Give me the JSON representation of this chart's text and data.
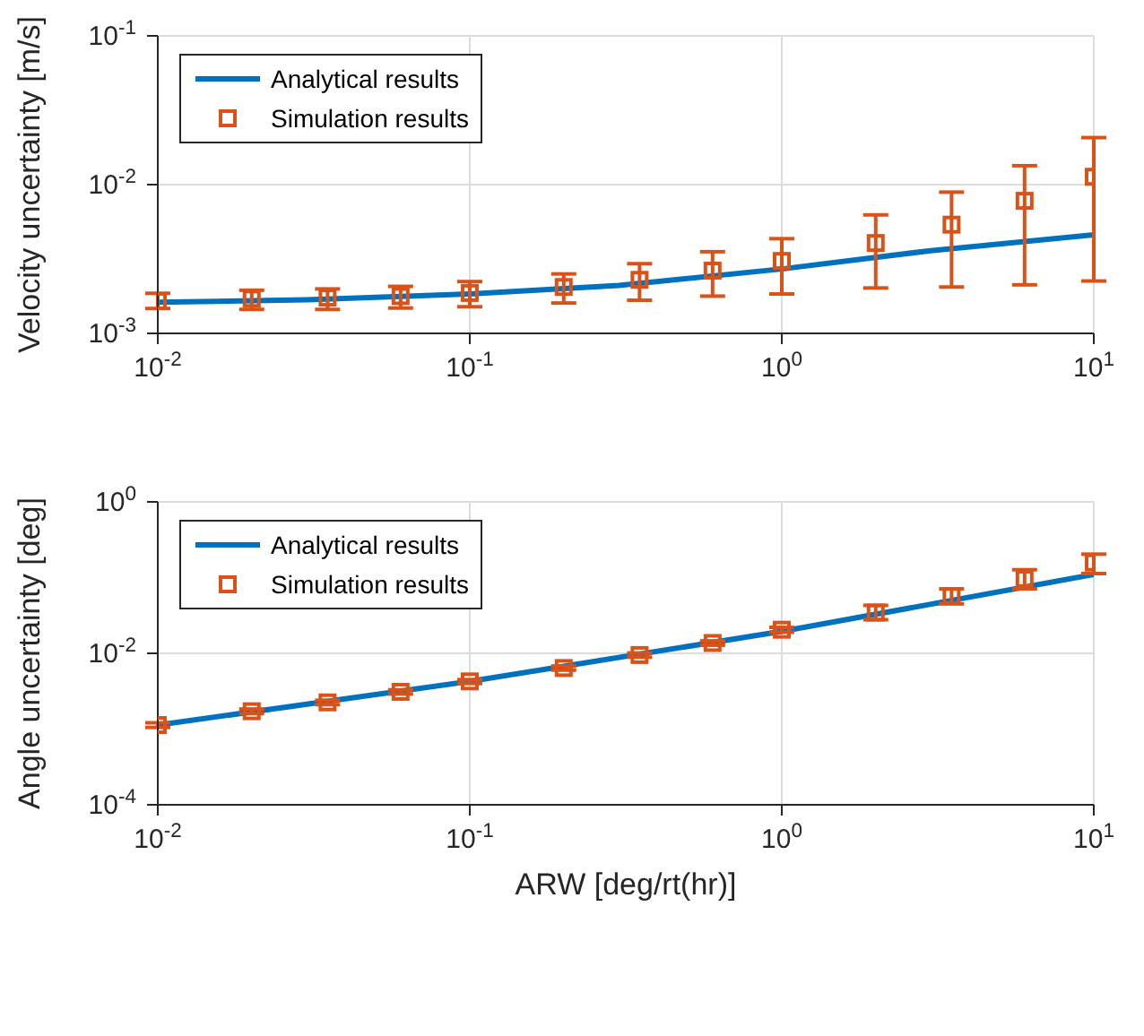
{
  "chart_data": [
    {
      "type": "line",
      "ylabel": "Velocity uncertainty [m/s]",
      "log": "xy",
      "grid": true,
      "legend": "top left",
      "xlim": [
        0.01,
        10
      ],
      "xticks": [
        {
          "value": 0.01,
          "label": "10$^{-2}$"
        },
        {
          "value": 0.1,
          "label": "10$^{-1}$"
        },
        {
          "value": 1,
          "label": "10$^{0}$"
        },
        {
          "value": 10,
          "label": "10$^{1}$"
        }
      ],
      "ylim": [
        0.001,
        0.1
      ],
      "yticks": [
        {
          "value": 0.001,
          "label": "10$^{-3}$"
        },
        {
          "value": 0.01,
          "label": "10$^{-2}$"
        },
        {
          "value": 0.1,
          "label": "10$^{-1}$"
        }
      ],
      "series": [
        {
          "name": "Analytical results",
          "color": "#0072bd",
          "x": [
            0.01,
            0.03,
            0.1,
            0.3,
            1,
            3,
            10
          ],
          "values": [
            0.00162,
            0.00168,
            0.00184,
            0.0021,
            0.00271,
            0.0036,
            0.0046
          ]
        },
        {
          "name": "Simulation results",
          "type": "scatter",
          "marker": "square",
          "color": "#d95319",
          "x": [
            0.01,
            0.02,
            0.035,
            0.06,
            0.1,
            0.2,
            0.35,
            0.6,
            1,
            2,
            3.5,
            6,
            10
          ],
          "values": [
            0.00165,
            0.00171,
            0.00174,
            0.00178,
            0.00187,
            0.00205,
            0.00229,
            0.00264,
            0.00307,
            0.00405,
            0.00538,
            0.00778,
            0.0113
          ],
          "errors": [
            [
              0.00147,
              0.00186
            ],
            [
              0.00145,
              0.00195
            ],
            [
              0.00145,
              0.00199
            ],
            [
              0.00148,
              0.00207
            ],
            [
              0.00151,
              0.00223
            ],
            [
              0.0016,
              0.00251
            ],
            [
              0.00167,
              0.00294
            ],
            [
              0.00178,
              0.00354
            ],
            [
              0.00184,
              0.00433
            ],
            [
              0.00202,
              0.00626
            ],
            [
              0.00205,
              0.0089
            ],
            [
              0.00212,
              0.0134
            ],
            [
              0.00225,
              0.0207
            ]
          ]
        }
      ]
    },
    {
      "type": "line",
      "ylabel": "Angle uncertainty [deg]",
      "xlabel": "ARW [deg/rt(hr)]",
      "log": "xy",
      "grid": true,
      "legend": "top left",
      "xlim": [
        0.01,
        10
      ],
      "xticks": [
        {
          "value": 0.01,
          "label": "10$^{-2}$"
        },
        {
          "value": 0.1,
          "label": "10$^{-1}$"
        },
        {
          "value": 1,
          "label": "10$^{0}$"
        },
        {
          "value": 10,
          "label": "10$^{1}$"
        }
      ],
      "ylim": [
        0.0001,
        1
      ],
      "yticks": [
        {
          "value": 0.0001,
          "label": "10$^{-4}$"
        },
        {
          "value": 0.01,
          "label": "10$^{-2}$"
        },
        {
          "value": 1,
          "label": "10$^{0}$"
        }
      ],
      "series": [
        {
          "name": "Analytical results",
          "color": "#0072bd",
          "x": [
            0.01,
            0.1,
            1,
            10
          ],
          "values": [
            0.00113,
            0.00426,
            0.0195,
            0.11
          ]
        },
        {
          "name": "Simulation results",
          "type": "scatter",
          "marker": "square",
          "color": "#d95319",
          "x": [
            0.01,
            0.02,
            0.035,
            0.06,
            0.1,
            0.2,
            0.35,
            0.6,
            1,
            2,
            3.5,
            6,
            10
          ],
          "values": [
            0.00113,
            0.00172,
            0.00225,
            0.0031,
            0.00426,
            0.0064,
            0.0095,
            0.0137,
            0.0205,
            0.0345,
            0.057,
            0.096,
            0.158
          ],
          "errors": [
            [
              0.00105,
              0.00121
            ],
            [
              0.0016,
              0.00184
            ],
            [
              0.0021,
              0.0024
            ],
            [
              0.0029,
              0.0033
            ],
            [
              0.004,
              0.0045
            ],
            [
              0.006,
              0.0068
            ],
            [
              0.0089,
              0.0101
            ],
            [
              0.0128,
              0.0146
            ],
            [
              0.019,
              0.022
            ],
            [
              0.0278,
              0.043
            ],
            [
              0.045,
              0.071
            ],
            [
              0.071,
              0.127
            ],
            [
              0.113,
              0.204
            ]
          ]
        }
      ]
    }
  ]
}
